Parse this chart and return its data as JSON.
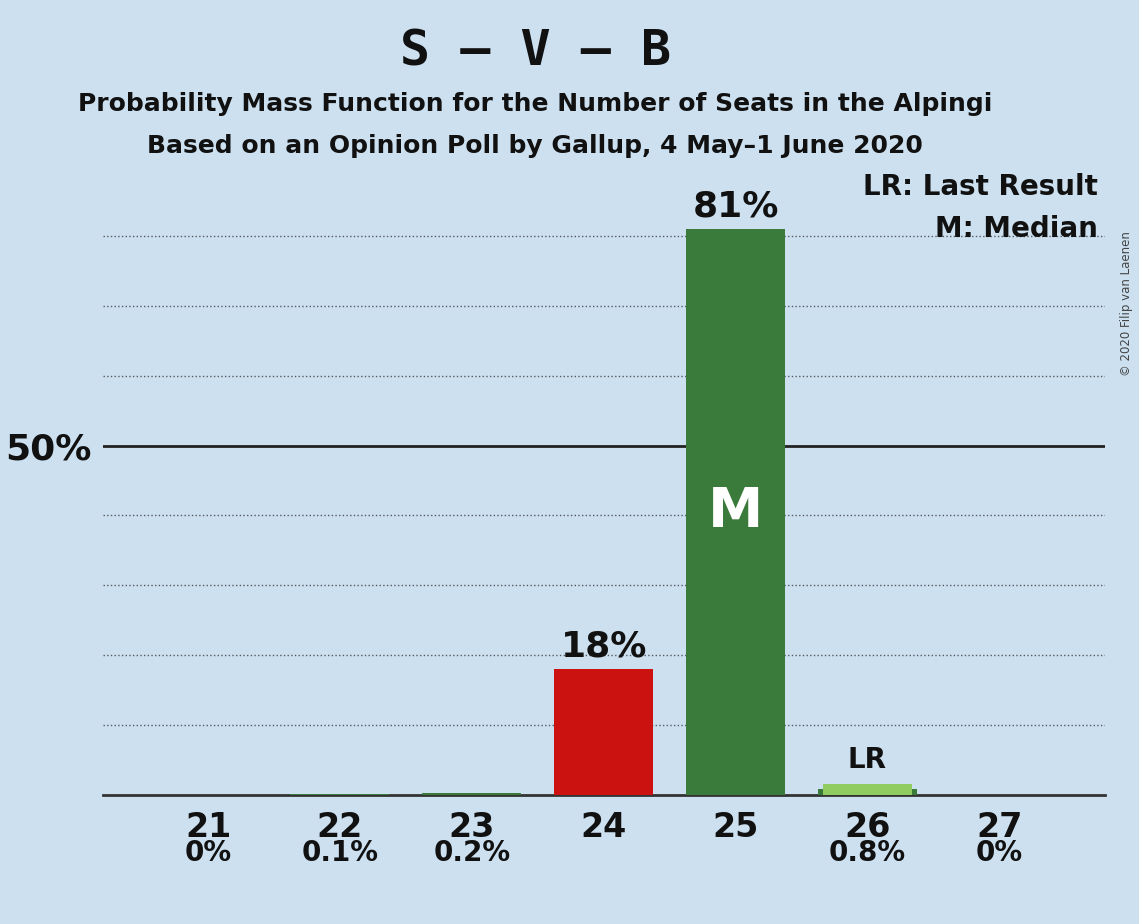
{
  "title": "S – V – B",
  "subtitle1": "Probability Mass Function for the Number of Seats in the Alpingi",
  "subtitle2": "Based on an Opinion Poll by Gallup, 4 May–1 June 2020",
  "copyright": "© 2020 Filip van Laenen",
  "categories": [
    21,
    22,
    23,
    24,
    25,
    26,
    27
  ],
  "values": [
    0.0,
    0.1,
    0.2,
    18.0,
    81.0,
    0.8,
    0.0
  ],
  "small_labels": [
    "0%",
    "0.1%",
    "0.2%",
    "",
    "",
    "0.8%",
    "0%"
  ],
  "large_labels": [
    "",
    "",
    "",
    "18%",
    "81%",
    "",
    ""
  ],
  "lr_bar": 26,
  "lr_value": 1.5,
  "lr_color": "#90cc60",
  "median_bar": 25,
  "median_label": "M",
  "background_color": "#cce0f0",
  "plot_bg_color": "#cce0f0",
  "bar_color_red": "#cc1111",
  "bar_color_green": "#3a7a3a",
  "ylim_max": 90,
  "grid_color": "#222222",
  "title_fontsize": 36,
  "subtitle_fontsize": 18,
  "small_label_fontsize": 20,
  "large_label_fontsize": 26,
  "axis_tick_fontsize": 24,
  "ytick_fontsize": 26,
  "legend_fontsize": 20,
  "M_fontsize": 40,
  "lr_label": "LR",
  "legend_lr": "LR: Last Result",
  "legend_m": "M: Median"
}
